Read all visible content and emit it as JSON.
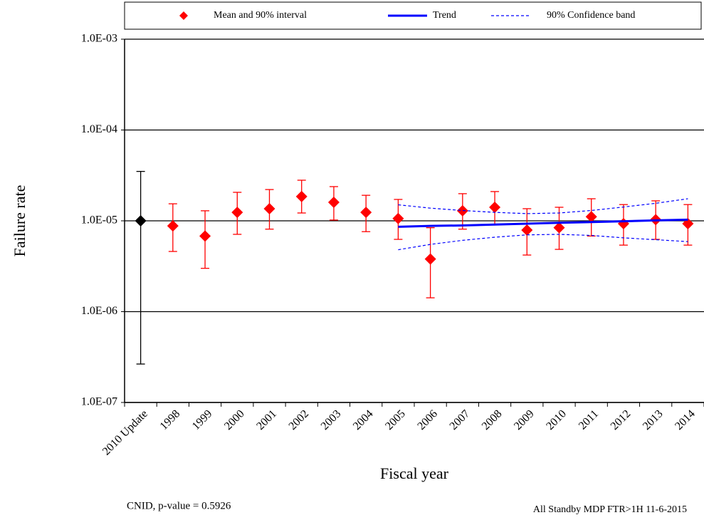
{
  "chart_data": {
    "type": "errorbar",
    "x_label": "Fiscal year",
    "y_label": "Failure rate",
    "annotations": [
      "CNID, p-value = 0.5926",
      "All Standby MDP FTR>1H 11-6-2015"
    ],
    "categories": [
      "2010 Update",
      "1998",
      "1999",
      "2000",
      "2001",
      "2002",
      "2003",
      "2004",
      "2005",
      "2006",
      "2007",
      "2008",
      "2009",
      "2010",
      "2011",
      "2012",
      "2013",
      "2014"
    ],
    "log_scale": true,
    "grid": true,
    "ylim": [
      1e-07,
      0.001
    ],
    "yticks": [
      {
        "value": 1e-07,
        "label": "1.0E-07"
      },
      {
        "value": 1e-06,
        "label": "1.0E-06"
      },
      {
        "value": 1e-05,
        "label": "1.0E-05"
      },
      {
        "value": 0.0001,
        "label": "1.0E-04"
      },
      {
        "value": 0.001,
        "label": "1.0E-03"
      }
    ],
    "legend": "top",
    "series": [
      {
        "name": "Mean and 90% interval",
        "color": "#ff0000",
        "point_colors": [
          "#000000",
          "#ff0000",
          "#ff0000",
          "#ff0000",
          "#ff0000",
          "#ff0000",
          "#ff0000",
          "#ff0000",
          "#ff0000",
          "#ff0000",
          "#ff0000",
          "#ff0000",
          "#ff0000",
          "#ff0000",
          "#ff0000",
          "#ff0000",
          "#ff0000",
          "#ff0000"
        ],
        "values": [
          1e-05,
          8.8e-06,
          6.8e-06,
          1.24e-05,
          1.36e-05,
          1.85e-05,
          1.6e-05,
          1.24e-05,
          1.06e-05,
          3.8e-06,
          1.29e-05,
          1.41e-05,
          7.9e-06,
          8.4e-06,
          1.11e-05,
          9.3e-06,
          1.03e-05,
          9.3e-06
        ],
        "lower": [
          2.65e-07,
          4.6e-06,
          3e-06,
          7.1e-06,
          8.1e-06,
          1.22e-05,
          1.02e-05,
          7.6e-06,
          6.25e-06,
          1.42e-06,
          8.1e-06,
          9.1e-06,
          4.2e-06,
          4.85e-06,
          6.8e-06,
          5.4e-06,
          6.25e-06,
          5.4e-06
        ],
        "upper": [
          3.5e-05,
          1.54e-05,
          1.29e-05,
          2.06e-05,
          2.21e-05,
          2.8e-05,
          2.38e-05,
          1.91e-05,
          1.72e-05,
          8.4e-06,
          1.99e-05,
          2.1e-05,
          1.36e-05,
          1.41e-05,
          1.75e-05,
          1.51e-05,
          1.66e-05,
          1.51e-05
        ]
      },
      {
        "name": "Trend",
        "color": "#0000ff",
        "values": [
          null,
          null,
          null,
          null,
          null,
          null,
          null,
          null,
          8.6e-06,
          8.8e-06,
          8.9e-06,
          9.1e-06,
          9.3e-06,
          9.5e-06,
          9.7e-06,
          9.9e-06,
          1.01e-05,
          1.03e-05
        ]
      },
      {
        "name": "90% Confidence band",
        "color": "#0000ff",
        "dashed": true,
        "upper": [
          null,
          null,
          null,
          null,
          null,
          null,
          null,
          null,
          1.5e-05,
          1.38e-05,
          1.3e-05,
          1.24e-05,
          1.2e-05,
          1.22e-05,
          1.3e-05,
          1.42e-05,
          1.56e-05,
          1.75e-05
        ],
        "lower": [
          null,
          null,
          null,
          null,
          null,
          null,
          null,
          null,
          4.8e-06,
          5.5e-06,
          6.1e-06,
          6.6e-06,
          7e-06,
          7.1e-06,
          6.9e-06,
          6.5e-06,
          6.2e-06,
          5.9e-06
        ]
      }
    ]
  }
}
